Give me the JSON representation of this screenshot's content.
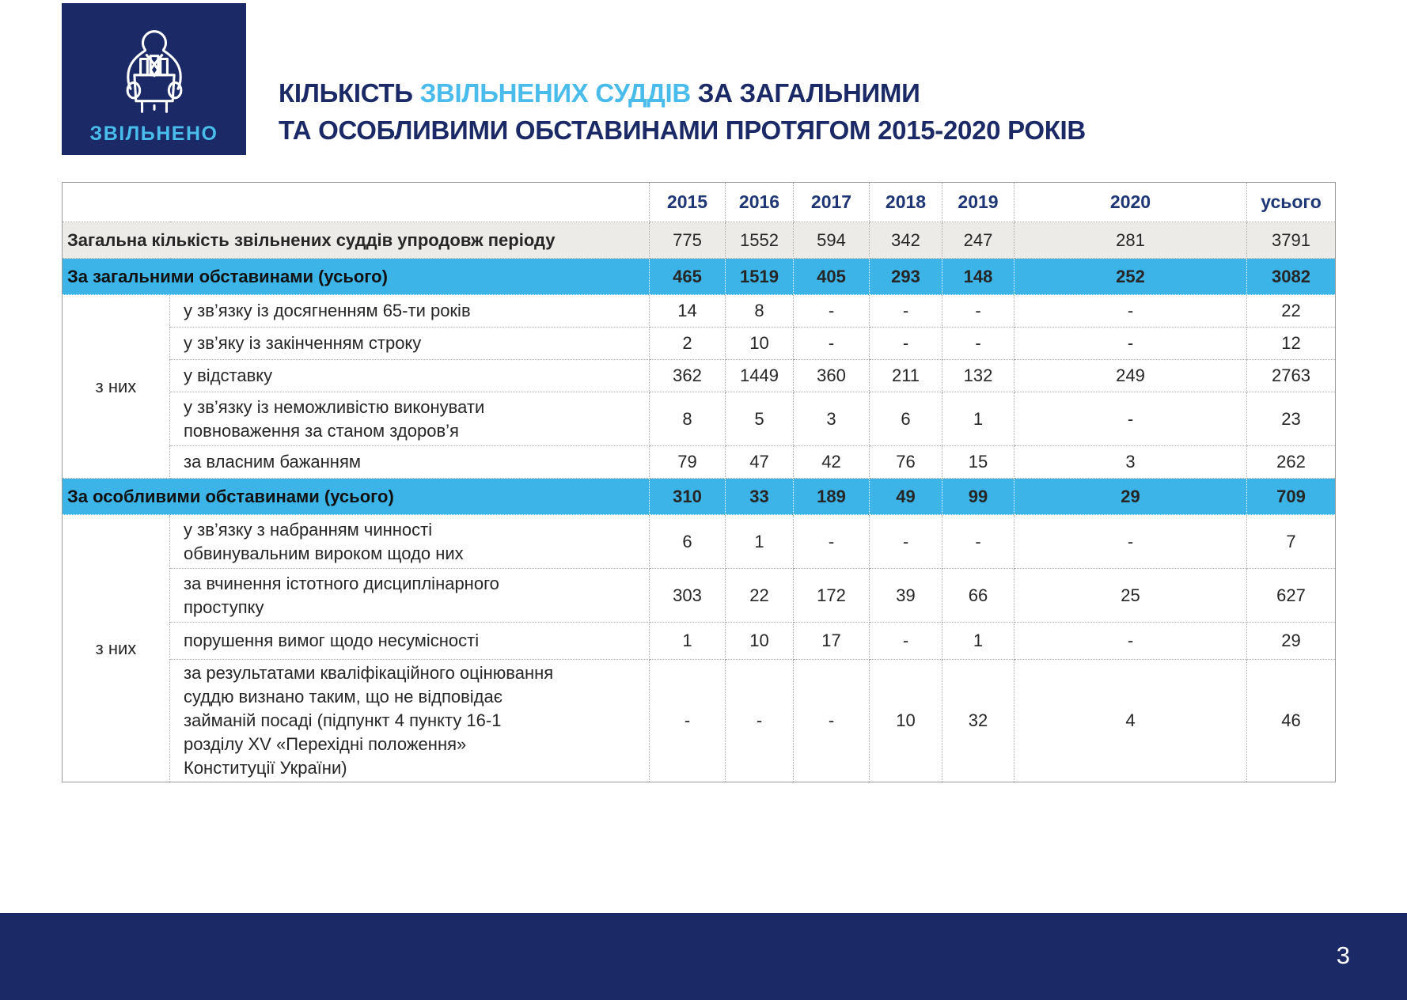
{
  "logo": {
    "label": "ЗВІЛЬНЕНО",
    "icon": "dismissed-person-with-box-icon"
  },
  "title": {
    "line1_prefix": "КІЛЬКІСТЬ ",
    "line1_highlight": "ЗВІЛЬНЕНИХ СУДДІВ",
    "line1_suffix": " ЗА ЗАГАЛЬНИМИ",
    "line2": "ТА ОСОБЛИВИМИ ОБСТАВИНАМИ ПРОТЯГОМ 2015-2020 РОКІВ"
  },
  "colors": {
    "navy": "#1b2a66",
    "year-navy": "#1e3675",
    "light-blue": "#49bcec",
    "row-blue": "#3cb4e7",
    "row-gray": "#edebe8"
  },
  "table": {
    "col_headers": [
      "",
      "2015",
      "2016",
      "2017",
      "2018",
      "2019",
      "2020",
      "усього"
    ],
    "rows": [
      {
        "type": "total-gray",
        "label": "Загальна кількість звільнених суддів упродовж періоду",
        "values": [
          "775",
          "1552",
          "594",
          "342",
          "247",
          "281",
          "3791"
        ]
      },
      {
        "type": "section-blue",
        "label": "За загальними обставинами (усього)",
        "values": [
          "465",
          "1519",
          "405",
          "293",
          "148",
          "252",
          "3082"
        ]
      },
      {
        "type": "sub",
        "group": "з них",
        "group_span": 5,
        "label": "у зв’язку із досягненням 65-ти років",
        "values": [
          "14",
          "8",
          "-",
          "-",
          "-",
          "-",
          "22"
        ]
      },
      {
        "type": "sub",
        "label": "у зв’яку із закінченням строку",
        "values": [
          "2",
          "10",
          "-",
          "-",
          "-",
          "-",
          "12"
        ]
      },
      {
        "type": "sub",
        "label": "у відставку",
        "values": [
          "362",
          "1449",
          "360",
          "211",
          "132",
          "249",
          "2763"
        ]
      },
      {
        "type": "sub",
        "label": "у зв’язку із неможливістю виконувати\nповноваження за станом здоров’я",
        "values": [
          "8",
          "5",
          "3",
          "6",
          "1",
          "-",
          "23"
        ]
      },
      {
        "type": "sub",
        "label": "за власним бажанням",
        "values": [
          "79",
          "47",
          "42",
          "76",
          "15",
          "3",
          "262"
        ]
      },
      {
        "type": "section-blue",
        "label": "За особливими обставинами (усього)",
        "values": [
          "310",
          "33",
          "189",
          "49",
          "99",
          "29",
          "709"
        ]
      },
      {
        "type": "sub",
        "group": "з них",
        "group_span": 4,
        "label": "у зв’язку з набранням чинності\nобвинувальним вироком щодо них",
        "values": [
          "6",
          "1",
          "-",
          "-",
          "-",
          "-",
          "7"
        ]
      },
      {
        "type": "sub",
        "label": "за вчинення істотного дисциплінарного\nпроступку",
        "values": [
          "303",
          "22",
          "172",
          "39",
          "66",
          "25",
          "627"
        ]
      },
      {
        "type": "sub",
        "label": "порушення вимог щодо несумісності",
        "values": [
          "1",
          "10",
          "17",
          "-",
          "1",
          "-",
          "29"
        ]
      },
      {
        "type": "sub",
        "label": "за результатами кваліфікаційного оцінювання\nсуддю визнано таким, що не відповідає\nзайманій посаді (підпункт 4 пункту 16-1\nрозділу XV «Перехідні положення»\nКонституції України)",
        "values": [
          "-",
          "-",
          "-",
          "10",
          "32",
          "4",
          "46"
        ]
      }
    ]
  },
  "footer": {
    "page_number": "3"
  }
}
